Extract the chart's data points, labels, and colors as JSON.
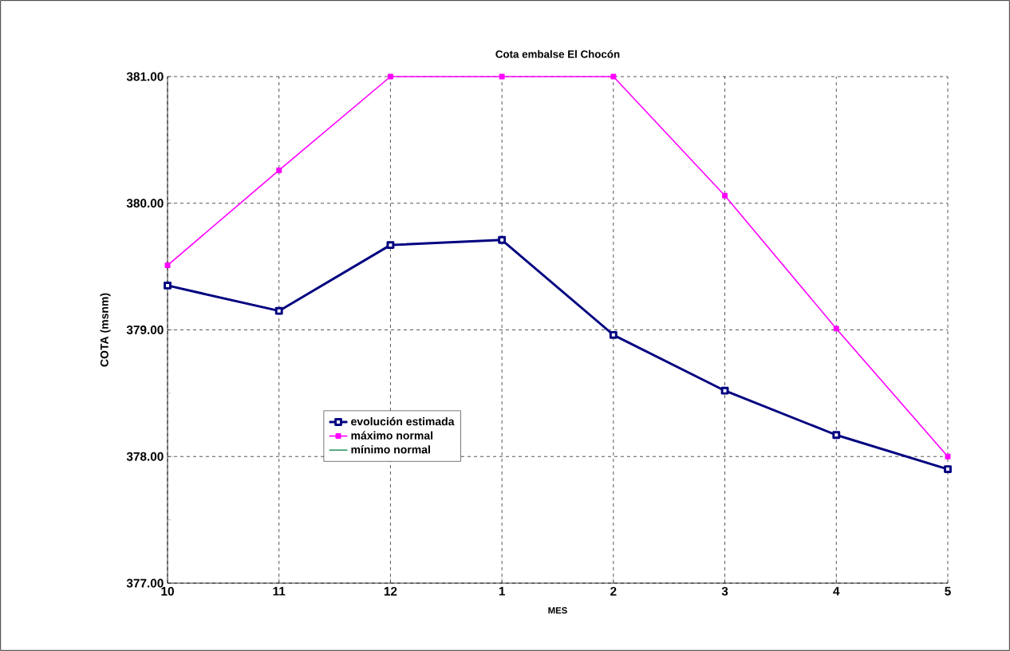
{
  "chart_data": {
    "type": "line",
    "title": "Cota embalse El Chocón",
    "xlabel": "MES",
    "ylabel": "COTA (msnm)",
    "categories": [
      "10",
      "11",
      "12",
      "1",
      "2",
      "3",
      "4",
      "5"
    ],
    "series": [
      {
        "name": "evolución estimada",
        "color": "#000080",
        "marker": "square",
        "values": [
          379.35,
          379.15,
          379.67,
          379.71,
          378.96,
          378.52,
          378.17,
          377.9
        ]
      },
      {
        "name": "máximo normal",
        "color": "#ff00ff",
        "marker": "square",
        "values": [
          379.51,
          380.26,
          381.0,
          381.0,
          381.0,
          380.06,
          379.01,
          378.0
        ]
      },
      {
        "name": "mínimo normal",
        "color": "#339966",
        "marker": "none",
        "values": [
          null,
          null,
          null,
          null,
          null,
          null,
          null,
          null
        ]
      }
    ],
    "ylim": [
      377,
      381
    ],
    "yticks": [
      {
        "value": 377,
        "label": "377.00"
      },
      {
        "value": 378,
        "label": "378.00"
      },
      {
        "value": 379,
        "label": "379.00"
      },
      {
        "value": 380,
        "label": "380.00"
      },
      {
        "value": 381,
        "label": "381.00"
      }
    ],
    "grid": true,
    "legend": "center left",
    "line_style": "solid"
  }
}
